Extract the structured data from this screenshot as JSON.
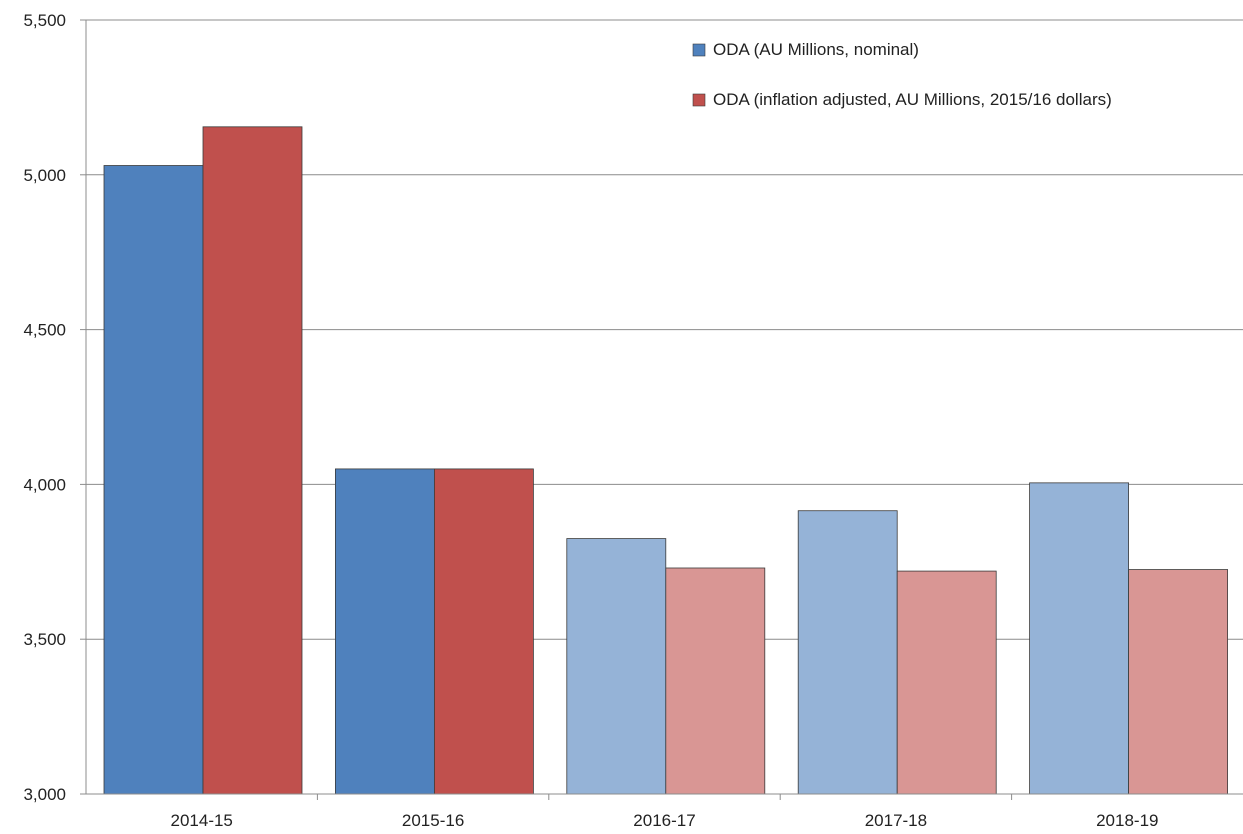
{
  "chart_data": {
    "type": "bar",
    "categories": [
      "2014-15",
      "2015-16",
      "2016-17",
      "2017-18",
      "2018-19"
    ],
    "series": [
      {
        "name": "ODA (AU Millions, nominal)",
        "values": [
          5030,
          4050,
          3825,
          3915,
          4005
        ],
        "color": "#4f81bd",
        "light_color": "#95b3d7"
      },
      {
        "name": "ODA (inflation adjusted, AU Millions, 2015/16 dollars)",
        "values": [
          5155,
          4050,
          3730,
          3720,
          3725
        ],
        "color": "#c0504d",
        "light_color": "#d99694"
      }
    ],
    "projected_from_index": 2,
    "ylim": [
      3000,
      5500
    ],
    "yticks": [
      3000,
      3500,
      4000,
      4500,
      5000,
      5500
    ],
    "ytick_labels": [
      "3,000",
      "3,500",
      "4,000",
      "4,500",
      "5,000",
      "5,500"
    ],
    "grid": true,
    "legend_position": "top-right",
    "title": "",
    "xlabel": "",
    "ylabel": ""
  }
}
